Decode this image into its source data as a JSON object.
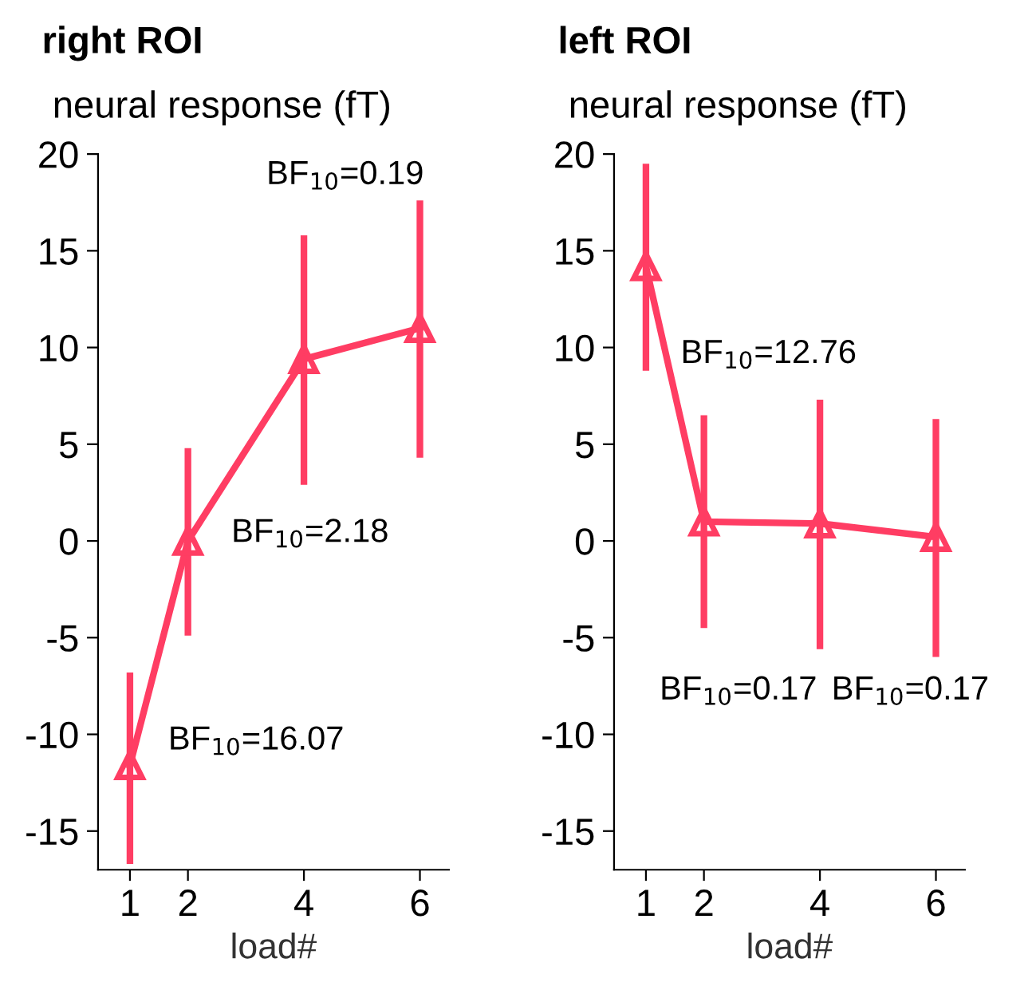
{
  "chart_data": [
    {
      "type": "line",
      "title": "right ROI",
      "ylabel": "neural response (fT)",
      "xlabel": "load#",
      "x": [
        1,
        2,
        4,
        6
      ],
      "series": [
        {
          "color": "#ff3d63",
          "values": [
            -11.6,
            0,
            9.4,
            11.0
          ],
          "errors": [
            [
              -16.7,
              -6.8
            ],
            [
              -4.9,
              4.8
            ],
            [
              2.9,
              15.8
            ],
            [
              4.3,
              17.6
            ]
          ]
        }
      ],
      "xlim": [
        0.45,
        6.5
      ],
      "xticks": [
        1,
        2,
        4,
        6
      ],
      "ylim": [
        -17,
        20
      ],
      "yticks": [
        -15,
        -10,
        -5,
        0,
        5,
        10,
        15,
        20
      ],
      "marker": "triangle",
      "line_style": "solid",
      "grid": false,
      "legend": false,
      "annotations": [
        "BF$_{10}$=16.07",
        "BF$_{10}$=2.18",
        "BF$_{10}$=0.19"
      ]
    },
    {
      "type": "line",
      "title": "left ROI",
      "ylabel": "neural response (fT)",
      "xlabel": "load#",
      "x": [
        1,
        2,
        4,
        6
      ],
      "series": [
        {
          "color": "#ff3d63",
          "values": [
            14.2,
            1.0,
            0.9,
            0.2
          ],
          "errors": [
            [
              8.8,
              19.5
            ],
            [
              -4.5,
              6.5
            ],
            [
              -5.6,
              7.3
            ],
            [
              -6.0,
              6.3
            ]
          ]
        }
      ],
      "xlim": [
        0.45,
        6.5
      ],
      "xticks": [
        1,
        2,
        4,
        6
      ],
      "ylim": [
        -17,
        20
      ],
      "yticks": [
        -15,
        -10,
        -5,
        0,
        5,
        10,
        15,
        20
      ],
      "marker": "triangle",
      "line_style": "solid",
      "grid": false,
      "legend": false,
      "annotations": [
        "BF$_{10}$=12.76",
        "BF$_{10}$=0.17",
        "BF$_{10}$=0.17"
      ]
    }
  ]
}
